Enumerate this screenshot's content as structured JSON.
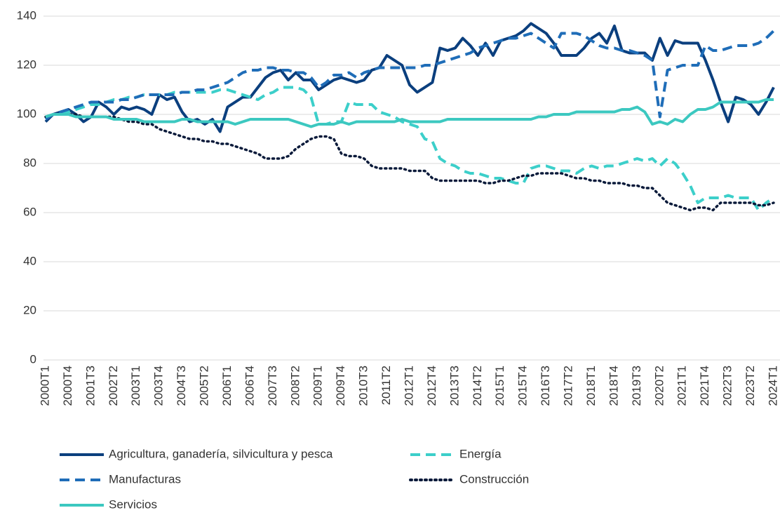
{
  "chart_data": {
    "type": "line",
    "categories": [
      "2000T1",
      null,
      null,
      "2000T4",
      null,
      null,
      "2001T3",
      null,
      null,
      "2002T2",
      null,
      null,
      "2003T1",
      null,
      null,
      "2003T4",
      null,
      null,
      "2004T3",
      null,
      null,
      "2005T2",
      null,
      null,
      "2006T1",
      null,
      null,
      "2006T4",
      null,
      null,
      "2007T3",
      null,
      null,
      "2008T2",
      null,
      null,
      "2009T1",
      null,
      null,
      "2009T4",
      null,
      null,
      "2010T3",
      null,
      null,
      "2011T2",
      null,
      null,
      "2012T1",
      null,
      null,
      "2012T4",
      null,
      null,
      "2013T3",
      null,
      null,
      "2014T2",
      null,
      null,
      "2015T1",
      null,
      null,
      "2015T4",
      null,
      null,
      "2016T3",
      null,
      null,
      "2017T2",
      null,
      null,
      "2018T1",
      null,
      null,
      "2018T4",
      null,
      null,
      "2019T3",
      null,
      null,
      "2020T2",
      null,
      null,
      "2021T1",
      null,
      null,
      "2021T4",
      null,
      null,
      "2022T3",
      null,
      null,
      "2023T2",
      null,
      null,
      "2024T1"
    ],
    "series": [
      {
        "name": "Agricultura, ganadería, silvicultura y pesca",
        "color": "#0b3f7e",
        "linestyle": "solid",
        "values": [
          97,
          100,
          101,
          102,
          100,
          97,
          99,
          105,
          103,
          100,
          103,
          102,
          103,
          102,
          100,
          108,
          106,
          107,
          101,
          97,
          98,
          96,
          98,
          93,
          103,
          105,
          107,
          107,
          111,
          115,
          117,
          118,
          114,
          117,
          114,
          114,
          110,
          112,
          114,
          115,
          114,
          113,
          114,
          118,
          119,
          124,
          122,
          120,
          112,
          109,
          111,
          113,
          127,
          126,
          127,
          131,
          128,
          124,
          129,
          124,
          130,
          131,
          132,
          134,
          137,
          135,
          133,
          129,
          124,
          124,
          124,
          127,
          131,
          133,
          129,
          136,
          126,
          125,
          125,
          125,
          122,
          131,
          124,
          130,
          129,
          129,
          129,
          122,
          114,
          105,
          97,
          107,
          106,
          104,
          100,
          105,
          111
        ]
      },
      {
        "name": "Energía",
        "color": "#3ccfca",
        "linestyle": "dashed",
        "values": [
          99,
          100,
          100,
          101,
          102,
          103,
          104,
          104,
          105,
          106,
          106,
          107,
          107,
          108,
          108,
          108,
          108,
          109,
          109,
          109,
          109,
          109,
          109,
          110,
          110,
          109,
          108,
          107,
          106,
          108,
          109,
          111,
          111,
          111,
          110,
          107,
          96,
          96,
          97,
          97,
          105,
          104,
          104,
          104,
          101,
          100,
          99,
          97,
          96,
          95,
          90,
          89,
          82,
          80,
          79,
          77,
          76,
          76,
          75,
          74,
          74,
          73,
          72,
          72,
          78,
          79,
          79,
          78,
          77,
          77,
          76,
          78,
          79,
          78,
          79,
          79,
          80,
          81,
          82,
          81,
          82,
          79,
          82,
          80,
          76,
          71,
          64,
          66,
          66,
          66,
          67,
          66,
          66,
          66,
          61,
          64,
          66
        ]
      },
      {
        "name": "Manufacturas",
        "color": "#1f6db8",
        "linestyle": "dashed",
        "values": [
          98,
          100,
          101,
          102,
          103,
          104,
          105,
          105,
          105,
          105,
          106,
          106,
          107,
          108,
          108,
          108,
          108,
          108,
          109,
          109,
          110,
          110,
          111,
          112,
          113,
          115,
          117,
          118,
          118,
          119,
          119,
          118,
          118,
          117,
          117,
          115,
          111,
          113,
          116,
          116,
          117,
          115,
          117,
          118,
          119,
          119,
          119,
          119,
          119,
          119,
          120,
          120,
          121,
          122,
          123,
          124,
          125,
          127,
          128,
          129,
          130,
          131,
          131,
          132,
          133,
          131,
          129,
          127,
          133,
          133,
          133,
          132,
          130,
          128,
          127,
          127,
          126,
          126,
          125,
          124,
          122,
          99,
          118,
          119,
          120,
          120,
          120,
          128,
          126,
          126,
          127,
          128,
          128,
          128,
          129,
          131,
          134
        ]
      },
      {
        "name": "Construcción",
        "color": "#0a1a3a",
        "linestyle": "dotted",
        "values": [
          99,
          100,
          100,
          100,
          100,
          99,
          99,
          99,
          99,
          99,
          98,
          97,
          97,
          96,
          96,
          94,
          93,
          92,
          91,
          90,
          90,
          89,
          89,
          88,
          88,
          87,
          86,
          85,
          84,
          82,
          82,
          82,
          83,
          86,
          88,
          90,
          91,
          91,
          90,
          84,
          83,
          83,
          82,
          79,
          78,
          78,
          78,
          78,
          77,
          77,
          77,
          74,
          73,
          73,
          73,
          73,
          73,
          73,
          72,
          72,
          73,
          73,
          74,
          75,
          75,
          76,
          76,
          76,
          76,
          75,
          74,
          74,
          73,
          73,
          72,
          72,
          72,
          71,
          71,
          70,
          70,
          67,
          64,
          63,
          62,
          61,
          62,
          62,
          61,
          64,
          64,
          64,
          64,
          64,
          63,
          63,
          64
        ]
      },
      {
        "name": "Servicios",
        "color": "#3cc8c0",
        "linestyle": "solid",
        "values": [
          99,
          100,
          100,
          100,
          99,
          99,
          99,
          99,
          99,
          98,
          98,
          98,
          98,
          97,
          97,
          97,
          97,
          97,
          98,
          98,
          97,
          97,
          97,
          97,
          97,
          96,
          97,
          98,
          98,
          98,
          98,
          98,
          98,
          97,
          96,
          95,
          96,
          96,
          96,
          97,
          96,
          97,
          97,
          97,
          97,
          97,
          97,
          98,
          97,
          97,
          97,
          97,
          97,
          98,
          98,
          98,
          98,
          98,
          98,
          98,
          98,
          98,
          98,
          98,
          98,
          99,
          99,
          100,
          100,
          100,
          101,
          101,
          101,
          101,
          101,
          101,
          102,
          102,
          103,
          101,
          96,
          97,
          96,
          98,
          97,
          100,
          102,
          102,
          103,
          105,
          105,
          105,
          105,
          105,
          105,
          106,
          106
        ]
      }
    ],
    "ylim": [
      0,
      140
    ],
    "yticks": [
      0,
      20,
      40,
      60,
      80,
      100,
      120,
      140
    ],
    "grid": true
  }
}
